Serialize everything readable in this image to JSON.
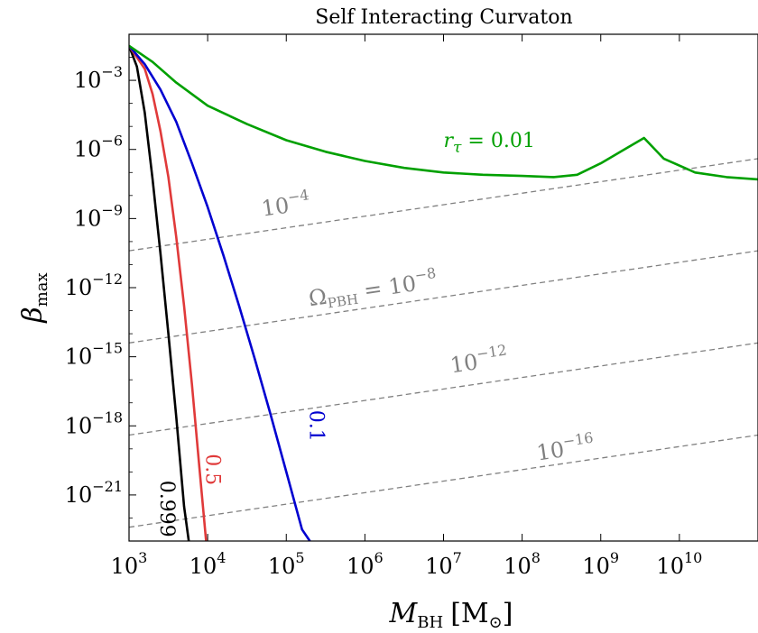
{
  "chart_data": {
    "type": "line",
    "title": "Self Interacting Curvaton",
    "xlabel": {
      "main": "M",
      "sub": "BH",
      "unit": "[M",
      "unit_sub": "⊙",
      "unit_close": "]"
    },
    "ylabel": {
      "main": "β",
      "sub": "max"
    },
    "x_scale": "log",
    "y_scale": "log",
    "xlim": [
      1000,
      100000000000
    ],
    "ylim": [
      1e-23,
      0.1
    ],
    "x_ticks": [
      {
        "base": "10",
        "exp": "3",
        "value": 1000
      },
      {
        "base": "10",
        "exp": "4",
        "value": 10000
      },
      {
        "base": "10",
        "exp": "5",
        "value": 100000
      },
      {
        "base": "10",
        "exp": "6",
        "value": 1000000
      },
      {
        "base": "10",
        "exp": "7",
        "value": 10000000
      },
      {
        "base": "10",
        "exp": "8",
        "value": 100000000
      },
      {
        "base": "10",
        "exp": "9",
        "value": 1000000000
      },
      {
        "base": "10",
        "exp": "10",
        "value": 10000000000
      }
    ],
    "y_ticks": [
      {
        "base": "10",
        "exp": "−3",
        "value": -3
      },
      {
        "base": "10",
        "exp": "−6",
        "value": -6
      },
      {
        "base": "10",
        "exp": "−9",
        "value": -9
      },
      {
        "base": "10",
        "exp": "−12",
        "value": -12
      },
      {
        "base": "10",
        "exp": "−15",
        "value": -15
      },
      {
        "base": "10",
        "exp": "−18",
        "value": -18
      },
      {
        "base": "10",
        "exp": "−21",
        "value": -21
      }
    ],
    "series": [
      {
        "name": "0.999",
        "color": "#000000",
        "log_x": [
          3.0,
          3.1,
          3.2,
          3.3,
          3.4,
          3.5,
          3.6,
          3.7,
          3.76
        ],
        "log_y": [
          -1.5,
          -2.4,
          -4.4,
          -7.3,
          -10.5,
          -14.0,
          -17.6,
          -21.5,
          -23.0
        ]
      },
      {
        "name": "0.5",
        "color": "#e03a3a",
        "log_x": [
          3.0,
          3.2,
          3.3,
          3.4,
          3.5,
          3.6,
          3.7,
          3.8,
          3.9,
          3.98
        ],
        "log_y": [
          -1.5,
          -2.5,
          -3.6,
          -5.2,
          -7.2,
          -9.8,
          -12.8,
          -16.2,
          -20.0,
          -23.0
        ]
      },
      {
        "name": "0.1",
        "color": "#0000d0",
        "log_x": [
          3.0,
          3.2,
          3.4,
          3.6,
          3.8,
          4.0,
          4.2,
          4.4,
          4.6,
          4.8,
          5.0,
          5.2,
          5.3
        ],
        "log_y": [
          -1.5,
          -2.3,
          -3.4,
          -4.8,
          -6.6,
          -8.5,
          -10.6,
          -12.8,
          -15.1,
          -17.5,
          -20.0,
          -22.5,
          -23.0
        ]
      },
      {
        "name": "r_τ = 0.01",
        "color": "#00a000",
        "log_x": [
          3.0,
          3.3,
          3.6,
          4.0,
          4.5,
          5.0,
          5.5,
          6.0,
          6.5,
          7.0,
          7.5,
          8.0,
          8.4,
          8.7,
          9.0,
          9.3,
          9.55,
          9.8,
          10.2,
          10.6,
          11.0
        ],
        "log_y": [
          -1.5,
          -2.2,
          -3.1,
          -4.1,
          -4.9,
          -5.6,
          -6.1,
          -6.5,
          -6.8,
          -7.0,
          -7.1,
          -7.15,
          -7.2,
          -7.1,
          -6.6,
          -6.0,
          -5.5,
          -6.4,
          -7.0,
          -7.2,
          -7.3
        ]
      }
    ],
    "reference_lines": {
      "color": "#808080",
      "style": "dashed",
      "slope_per_decade": 0.5,
      "lines": [
        {
          "label": "10",
          "label_exp": "−4",
          "log_y_at_x3": -10.4,
          "label_log_x": 4.7,
          "label_log_y": -8.9
        },
        {
          "label": "Ω",
          "label_sub": "PBH",
          "label_mid": " = 10",
          "label_exp": "−8",
          "log_y_at_x3": -14.4,
          "label_log_x": 5.3,
          "label_log_y": -12.8
        },
        {
          "label": "10",
          "label_exp": "−12",
          "log_y_at_x3": -18.4,
          "label_log_x": 7.1,
          "label_log_y": -15.7
        },
        {
          "label": "10",
          "label_exp": "−16",
          "log_y_at_x3": -22.4,
          "label_log_x": 8.2,
          "label_log_y": -19.5
        }
      ]
    },
    "curve_labels": [
      {
        "text": "0.999",
        "color": "#000000",
        "log_x": 3.4,
        "log_y": -21.6,
        "rotation": 90
      },
      {
        "text": "0.5",
        "color": "#e03a3a",
        "log_x": 3.98,
        "log_y": -19.9,
        "rotation": 90
      },
      {
        "text": "0.1",
        "color": "#0000d0",
        "log_x": 5.3,
        "log_y": -18.0,
        "rotation": 90
      },
      {
        "text": "r",
        "sub": "τ",
        "tail": " = 0.01",
        "color": "#00a000",
        "log_x": 7.0,
        "log_y": -5.9,
        "rotation": 0
      }
    ]
  }
}
